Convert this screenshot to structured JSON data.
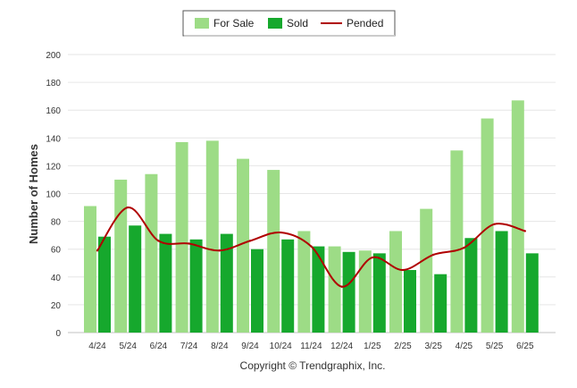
{
  "chart_data": {
    "type": "bar",
    "categories": [
      "4/24",
      "5/24",
      "6/24",
      "7/24",
      "8/24",
      "9/24",
      "10/24",
      "11/24",
      "12/24",
      "1/25",
      "2/25",
      "3/25",
      "4/25",
      "5/25",
      "6/25"
    ],
    "series": [
      {
        "name": "For Sale",
        "type": "bar",
        "color": "#9ddc86",
        "values": [
          91,
          110,
          114,
          137,
          138,
          125,
          117,
          73,
          62,
          59,
          73,
          89,
          131,
          154,
          167
        ]
      },
      {
        "name": "Sold",
        "type": "bar",
        "color": "#16a82d",
        "values": [
          69,
          77,
          71,
          67,
          71,
          60,
          67,
          62,
          58,
          57,
          45,
          42,
          68,
          73,
          57
        ]
      },
      {
        "name": "Pended",
        "type": "line",
        "color": "#b00000",
        "values": [
          59,
          90,
          66,
          64,
          59,
          66,
          72,
          62,
          33,
          54,
          45,
          56,
          61,
          78,
          73
        ]
      }
    ],
    "ylabel": "Number of Homes",
    "xlabel": "",
    "ylim": [
      0,
      200
    ],
    "yticks": [
      0,
      20,
      40,
      60,
      80,
      100,
      120,
      140,
      160,
      180,
      200
    ],
    "grid": true,
    "legend_position": "top-center"
  },
  "credit": "Copyright © Trendgraphix, Inc."
}
